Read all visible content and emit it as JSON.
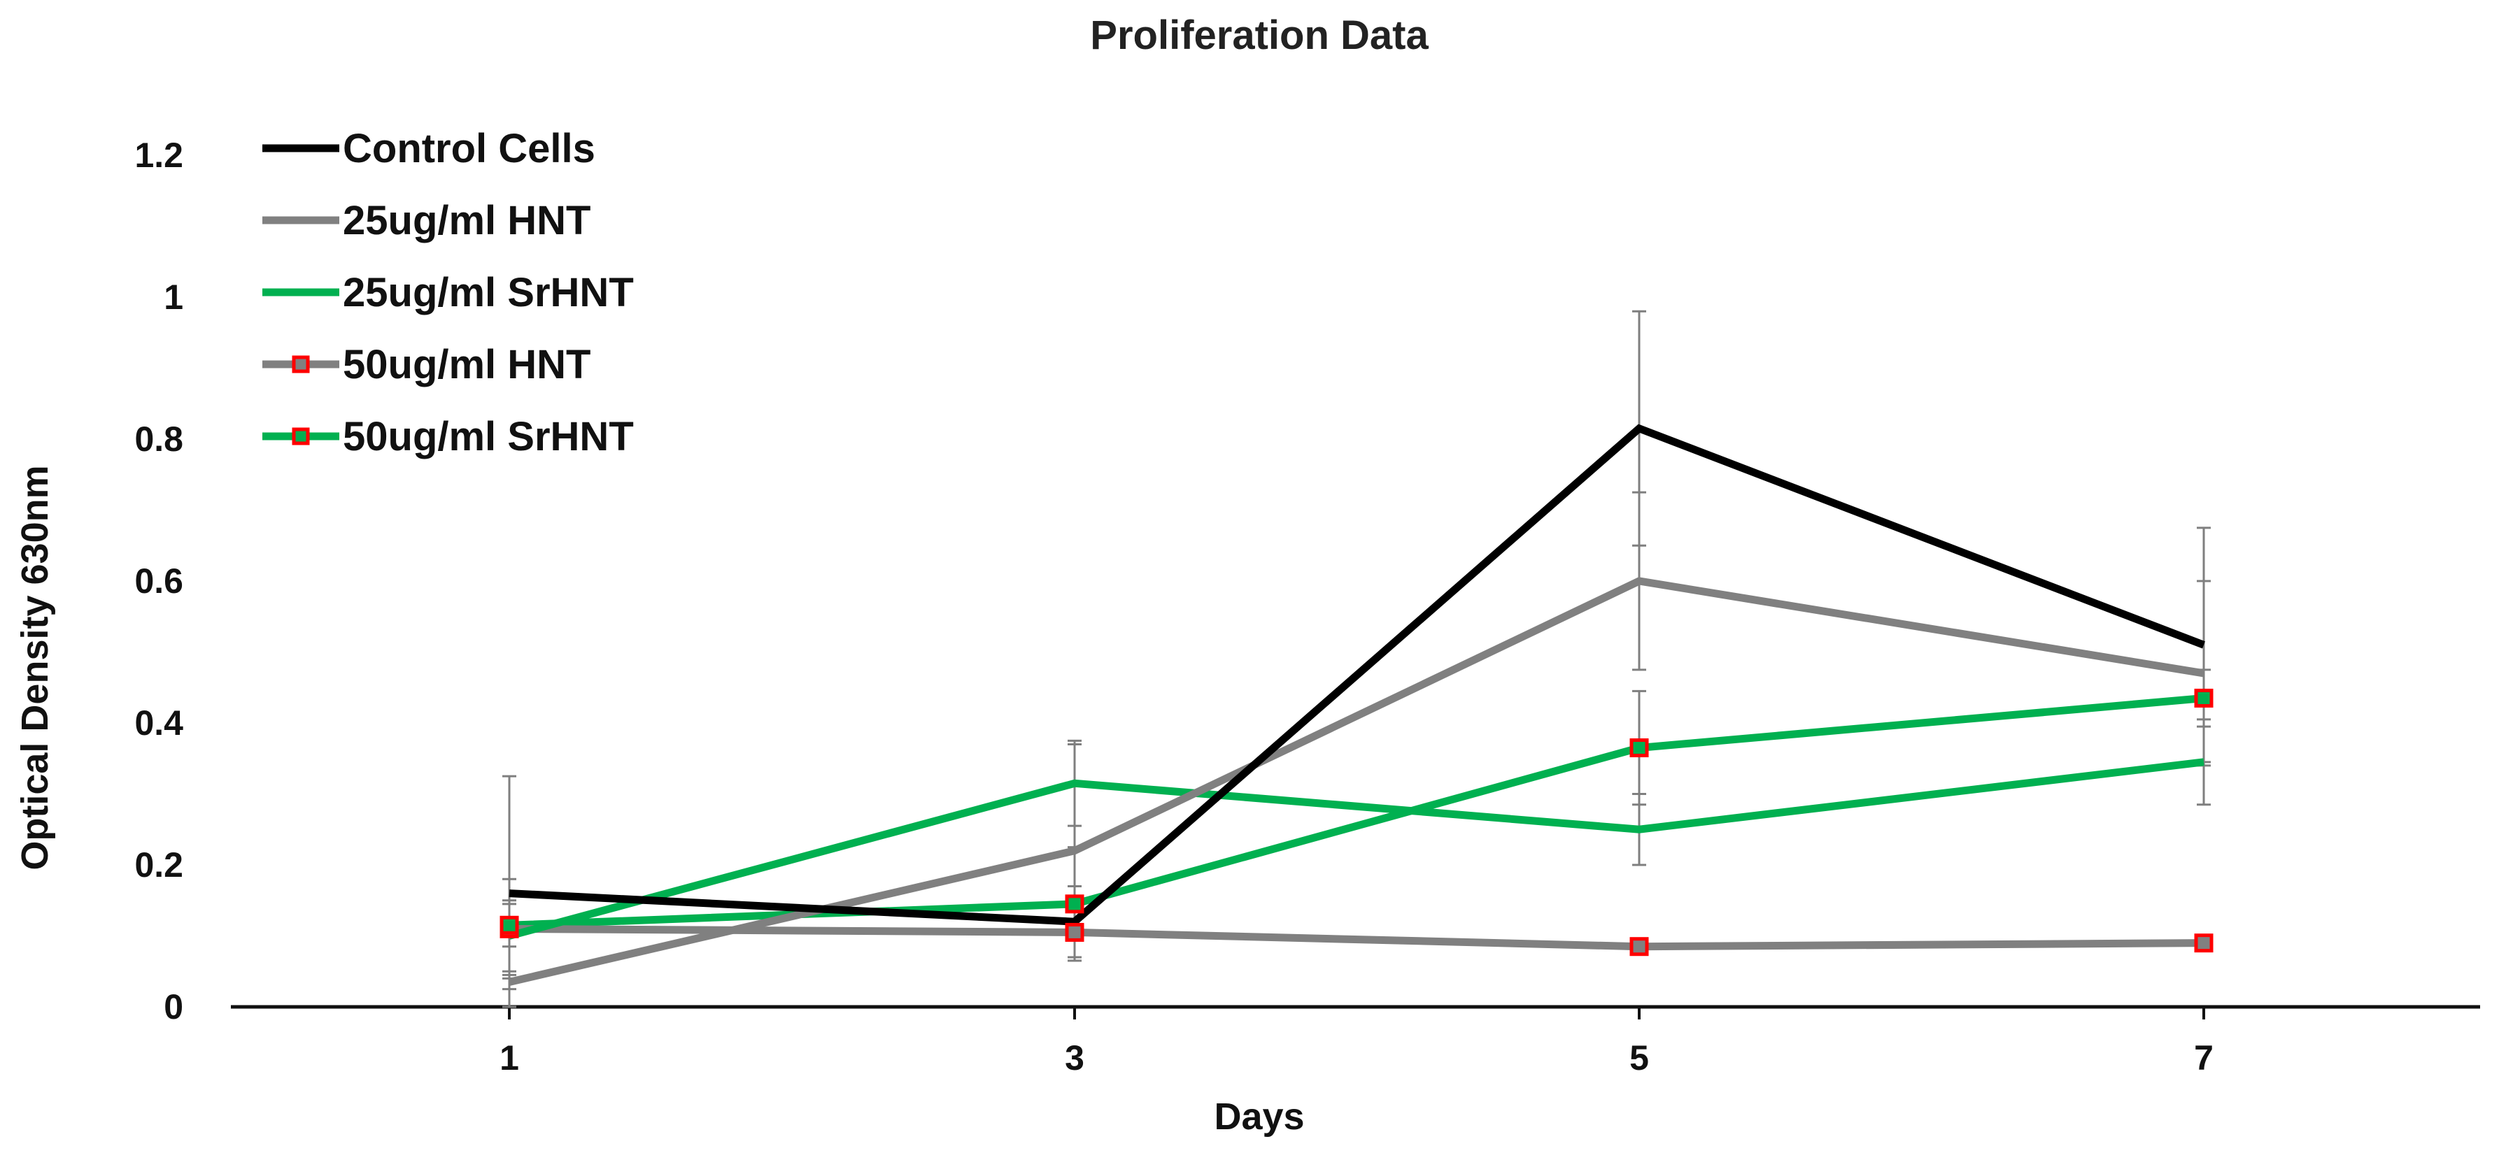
{
  "chart_data": {
    "type": "line",
    "title": "Proliferation Data",
    "xlabel": "Days",
    "ylabel": "Optical Density 630nm",
    "categories": [
      "1",
      "3",
      "5",
      "7"
    ],
    "ylim": [
      0,
      1.2
    ],
    "yticks": [
      "0",
      "0.2",
      "0.4",
      "0.6",
      "0.8",
      "1",
      "1.2"
    ],
    "legend_position": "top-left",
    "grid": false,
    "series": [
      {
        "name": "Control Cells",
        "color": "#000000",
        "marker": "none",
        "values": [
          0.16,
          0.12,
          0.815,
          0.51
        ],
        "errors": [
          0.165,
          0.05,
          0.165,
          0.165
        ]
      },
      {
        "name": "25ug/ml HNT",
        "color": "#808080",
        "marker": "none",
        "values": [
          0.035,
          0.22,
          0.6,
          0.47
        ],
        "errors": [
          0.01,
          0.15,
          0.125,
          0.13
        ]
      },
      {
        "name": "25ug/ml SrHNT",
        "color": "#00b050",
        "marker": "none",
        "values": [
          0.1,
          0.315,
          0.25,
          0.345
        ],
        "errors": [
          0.05,
          0.06,
          0.05,
          0.06
        ]
      },
      {
        "name": "50ug/ml HNT",
        "color": "#808080",
        "marker": "square",
        "values": [
          0.11,
          0.105,
          0.085,
          0.09
        ],
        "errors": [
          0.07,
          0.04,
          0.01,
          0.01
        ]
      },
      {
        "name": "50ug/ml SrHNT",
        "color": "#00b050",
        "marker": "square",
        "values": [
          0.115,
          0.145,
          0.365,
          0.435
        ],
        "errors": [
          0.03,
          0.08,
          0.08,
          0.04
        ]
      }
    ],
    "marker_fill": "#ff0000"
  }
}
